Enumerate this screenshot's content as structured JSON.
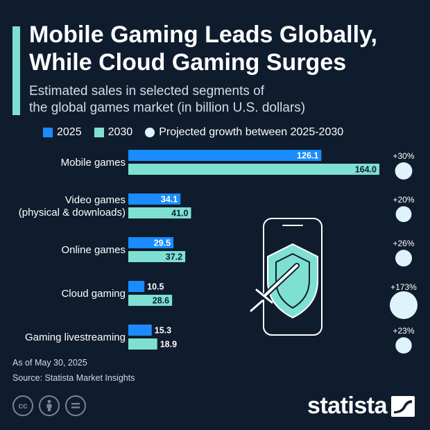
{
  "header": {
    "title_line1": "Mobile Gaming Leads Globally,",
    "title_line2": "While Cloud Gaming Surges",
    "subtitle_line1": "Estimated sales in selected segments of",
    "subtitle_line2": "the global games market (in billion U.S. dollars)"
  },
  "colors": {
    "background": "#0f1c2e",
    "accent": "#7ee0d2",
    "series_2025": "#1a8cff",
    "series_2030": "#7ee0d2",
    "growth_dot": "#dff3fb"
  },
  "chart_data": {
    "type": "bar",
    "orientation": "horizontal",
    "title": "Mobile Gaming Leads Globally, While Cloud Gaming Surges",
    "xlim": [
      0,
      164
    ],
    "categories": [
      [
        "Mobile games"
      ],
      [
        "Video games",
        "(physical & downloads)"
      ],
      [
        "Online games"
      ],
      [
        "Cloud gaming"
      ],
      [
        "Gaming livestreaming"
      ]
    ],
    "series": [
      {
        "name": "2025",
        "values": [
          126.1,
          34.1,
          29.5,
          10.5,
          15.3
        ]
      },
      {
        "name": "2030",
        "values": [
          164.0,
          41.0,
          37.2,
          28.6,
          18.9
        ]
      }
    ],
    "growth": {
      "name": "Projected growth between 2025-2030",
      "labels": [
        "+30%",
        "+20%",
        "+26%",
        "+173%",
        "+23%"
      ],
      "values": [
        30,
        20,
        26,
        173,
        23
      ]
    },
    "legend_position": "top",
    "grid": false
  },
  "legend": {
    "item_2025": "2025",
    "item_2030": "2030",
    "item_growth": "Projected growth between 2025-2030"
  },
  "footer": {
    "as_of": "As of May 30, 2025",
    "source": "Source: Statista Market Insights",
    "brand": "statista"
  }
}
